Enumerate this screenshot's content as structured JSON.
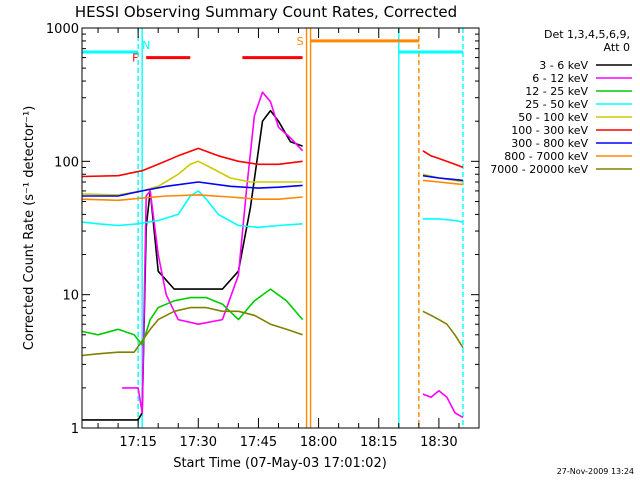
{
  "chart_data": {
    "type": "line",
    "title": "HESSI Observing Summary Count Rates, Corrected",
    "xlabel": "Start Time (07-May-03 17:01:02)",
    "ylabel": "Corrected Count Rate (s⁻¹ detector⁻¹)",
    "x_unit": "UT time on 2003-05-07",
    "xlim": [
      "17:01",
      "18:40"
    ],
    "ylim": [
      1,
      1000
    ],
    "yscale": "log",
    "x_ticks": [
      "17:15",
      "17:30",
      "17:45",
      "18:00",
      "18:15",
      "18:30"
    ],
    "y_ticks": [
      {
        "value": 1,
        "label": "1"
      },
      {
        "value": 10,
        "label": "10"
      },
      {
        "value": 100,
        "label": "100"
      },
      {
        "value": 1000,
        "label": "1000"
      }
    ],
    "legend_header": [
      "Det 1,3,4,5,6,9,",
      "Att 0"
    ],
    "legend_position": "right, outside plot",
    "data_gaps": [
      [
        "17:57",
        "18:25"
      ]
    ],
    "series": [
      {
        "name": "3 - 6 keV",
        "color": "#000000",
        "segments": [
          {
            "x": [
              "17:01",
              "17:10",
              "17:15",
              "17:16",
              "17:17",
              "17:18",
              "17:20",
              "17:24",
              "17:28",
              "17:32",
              "17:36",
              "17:40",
              "17:43",
              "17:46",
              "17:48",
              "17:50",
              "17:53",
              "17:56"
            ],
            "y": [
              1.15,
              1.15,
              1.15,
              1.3,
              32,
              60,
              15,
              11,
              11,
              11,
              11,
              15,
              45,
              200,
              240,
              200,
              140,
              130
            ]
          }
        ]
      },
      {
        "name": "6 - 12 keV",
        "color": "#ff00ff",
        "segments": [
          {
            "x": [
              "17:11",
              "17:12",
              "17:15",
              "17:16",
              "17:17",
              "17:18",
              "17:20",
              "17:22",
              "17:25",
              "17:30",
              "17:36",
              "17:40",
              "17:42",
              "17:44",
              "17:46",
              "17:48",
              "17:50",
              "17:53",
              "17:56"
            ],
            "y": [
              2.0,
              2.0,
              2.0,
              1.3,
              55,
              60,
              20,
              10,
              6.5,
              6,
              6.5,
              14,
              60,
              220,
              330,
              280,
              180,
              150,
              120
            ]
          },
          {
            "x": [
              "18:26",
              "18:28",
              "18:30",
              "18:32",
              "18:34",
              "18:36"
            ],
            "y": [
              1.8,
              1.7,
              1.9,
              1.7,
              1.3,
              1.2
            ]
          }
        ]
      },
      {
        "name": "12 - 25 keV",
        "color": "#00cc00",
        "segments": [
          {
            "x": [
              "17:01",
              "17:05",
              "17:10",
              "17:14",
              "17:16",
              "17:18",
              "17:20",
              "17:24",
              "17:28",
              "17:32",
              "17:36",
              "17:40",
              "17:44",
              "17:48",
              "17:52",
              "17:56"
            ],
            "y": [
              5.3,
              5.0,
              5.5,
              5.0,
              4.2,
              6.5,
              8,
              9,
              9.5,
              9.5,
              8.5,
              6.5,
              9,
              11,
              9,
              6.5
            ]
          }
        ]
      },
      {
        "name": "25 - 50 keV",
        "color": "#00ffff",
        "segments": [
          {
            "x": [
              "17:01",
              "17:05",
              "17:10",
              "17:15",
              "17:20",
              "17:25",
              "17:28",
              "17:30",
              "17:32",
              "17:35",
              "17:40",
              "17:45",
              "17:50",
              "17:56"
            ],
            "y": [
              35,
              34,
              33,
              34,
              36,
              40,
              55,
              60,
              52,
              40,
              33,
              32,
              33,
              34
            ]
          },
          {
            "x": [
              "18:26",
              "18:30",
              "18:34",
              "18:36"
            ],
            "y": [
              37,
              37,
              36,
              35
            ]
          }
        ]
      },
      {
        "name": "50 - 100 keV",
        "color": "#cccc00",
        "segments": [
          {
            "x": [
              "17:01",
              "17:10",
              "17:16",
              "17:20",
              "17:25",
              "17:28",
              "17:30",
              "17:33",
              "17:38",
              "17:43",
              "17:48",
              "17:52",
              "17:56"
            ],
            "y": [
              57,
              56,
              60,
              65,
              80,
              95,
              100,
              90,
              75,
              70,
              70,
              70,
              70
            ]
          },
          {
            "x": [
              "18:26",
              "18:30",
              "18:34",
              "18:36"
            ],
            "y": [
              80,
              75,
              72,
              70
            ]
          }
        ]
      },
      {
        "name": "100 - 300 keV",
        "color": "#ff0000",
        "segments": [
          {
            "x": [
              "17:01",
              "17:10",
              "17:16",
              "17:20",
              "17:25",
              "17:30",
              "17:35",
              "17:40",
              "17:45",
              "17:50",
              "17:56"
            ],
            "y": [
              77,
              78,
              85,
              95,
              110,
              125,
              110,
              100,
              95,
              95,
              100
            ]
          },
          {
            "x": [
              "18:26",
              "18:28",
              "18:30",
              "18:34",
              "18:36"
            ],
            "y": [
              120,
              110,
              105,
              95,
              90
            ]
          }
        ]
      },
      {
        "name": "300 - 800 keV",
        "color": "#0000ff",
        "segments": [
          {
            "x": [
              "17:01",
              "17:10",
              "17:16",
              "17:22",
              "17:30",
              "17:38",
              "17:45",
              "17:50",
              "17:56"
            ],
            "y": [
              55,
              55,
              60,
              65,
              70,
              65,
              63,
              64,
              66
            ]
          },
          {
            "x": [
              "18:26",
              "18:30",
              "18:34",
              "18:36"
            ],
            "y": [
              78,
              75,
              73,
              72
            ]
          }
        ]
      },
      {
        "name": "800 - 7000 keV",
        "color": "#ff8800",
        "segments": [
          {
            "x": [
              "17:01",
              "17:10",
              "17:16",
              "17:22",
              "17:30",
              "17:38",
              "17:45",
              "17:50",
              "17:56"
            ],
            "y": [
              52,
              51,
              53,
              55,
              56,
              54,
              52,
              52,
              54
            ]
          },
          {
            "x": [
              "18:26",
              "18:30",
              "18:34",
              "18:36"
            ],
            "y": [
              72,
              70,
              68,
              67
            ]
          }
        ]
      },
      {
        "name": "7000 - 20000 keV",
        "color": "#808000",
        "segments": [
          {
            "x": [
              "17:01",
              "17:05",
              "17:10",
              "17:14",
              "17:16",
              "17:18",
              "17:20",
              "17:24",
              "17:28",
              "17:32",
              "17:36",
              "17:40",
              "17:44",
              "17:48",
              "17:52",
              "17:56"
            ],
            "y": [
              3.5,
              3.6,
              3.7,
              3.7,
              4.5,
              5.5,
              6.5,
              7.5,
              8,
              8,
              7.5,
              7.5,
              7,
              6,
              5.5,
              5
            ]
          },
          {
            "x": [
              "18:26",
              "18:28",
              "18:30",
              "18:32",
              "18:34",
              "18:36"
            ],
            "y": [
              7.5,
              7,
              6.5,
              6,
              5,
              4
            ]
          }
        ]
      }
    ],
    "annotations": {
      "flag_bars": [
        {
          "label": "F",
          "color": "#ff0000",
          "y": 600,
          "spans": [
            [
              "17:17",
              "17:28"
            ],
            [
              "17:41",
              "17:56"
            ]
          ]
        },
        {
          "label": "",
          "color": "#00ffff",
          "y": 660,
          "spans": [
            [
              "17:01",
              "17:15"
            ],
            [
              "18:20",
              "18:36"
            ]
          ]
        },
        {
          "label": "S",
          "color": "#ff8800",
          "y": 800,
          "spans": [
            [
              "17:58",
              "18:25"
            ]
          ]
        }
      ],
      "vlines": [
        {
          "x": "17:15",
          "color": "#00ffff",
          "style": "dashed",
          "label": "N"
        },
        {
          "x": "17:16",
          "color": "#00ffff",
          "style": "solid",
          "label": ""
        },
        {
          "x": "17:57",
          "color": "#ff8800",
          "style": "solid",
          "label": ""
        },
        {
          "x": "17:58",
          "color": "#ff8800",
          "style": "solid",
          "label": ""
        },
        {
          "x": "18:20",
          "color": "#00ffff",
          "style": "solid",
          "label": ""
        },
        {
          "x": "18:25",
          "color": "#ff8800",
          "style": "dashed",
          "label": ""
        },
        {
          "x": "18:36",
          "color": "#00ffff",
          "style": "dashed",
          "label": ""
        }
      ]
    },
    "footer_timestamp": "27-Nov-2009 13:24"
  }
}
